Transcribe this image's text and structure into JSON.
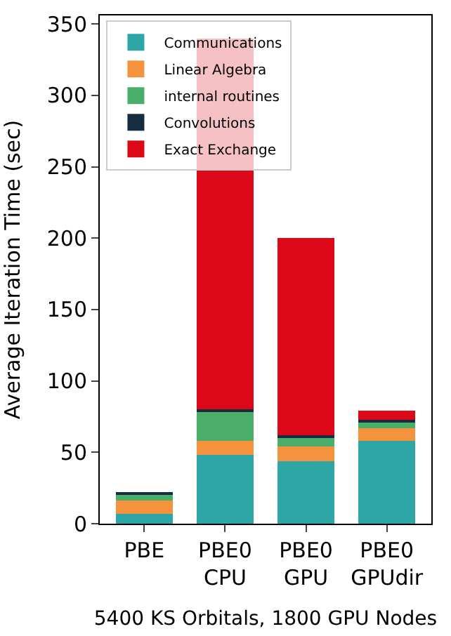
{
  "chart_data": {
    "type": "bar",
    "stacked": true,
    "ylabel": "Average Iteration Time (sec)",
    "xlabel": "5400 KS Orbitals, 1800 GPU Nodes",
    "categories": [
      "PBE",
      "PBE0\nCPU",
      "PBE0\nGPU",
      "PBE0\nGPUdir"
    ],
    "series": [
      {
        "name": "Communications",
        "color": "#2fa6a6",
        "values": [
          7,
          48,
          44,
          58
        ]
      },
      {
        "name": "Linear Algebra",
        "color": "#f5923e",
        "values": [
          9,
          10,
          10,
          9
        ]
      },
      {
        "name": "internal routines",
        "color": "#4aad6a",
        "values": [
          4,
          20,
          6,
          4
        ]
      },
      {
        "name": "Convolutions",
        "color": "#142d41",
        "values": [
          2,
          2,
          2,
          2
        ]
      },
      {
        "name": "Exact Exchange",
        "color": "#dc0818",
        "values": [
          0,
          260,
          138,
          6
        ]
      }
    ],
    "ylim": [
      0,
      356
    ],
    "yticks": [
      0,
      50,
      100,
      150,
      200,
      250,
      300,
      350
    ],
    "legend": "top left"
  }
}
